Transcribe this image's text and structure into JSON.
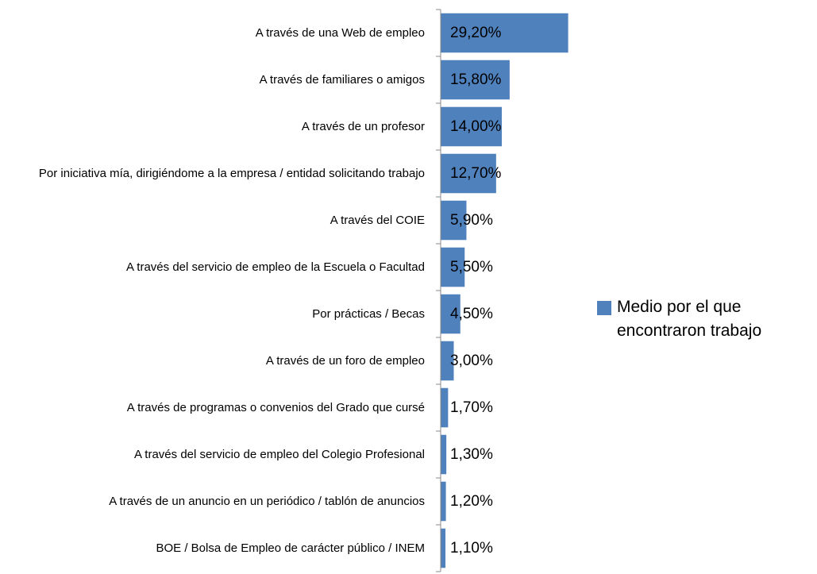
{
  "chart_data": {
    "type": "bar",
    "orientation": "horizontal",
    "categories": [
      "A través de una Web de empleo",
      "A través de familiares o amigos",
      "A través de un profesor",
      "Por iniciativa mía, dirigiéndome a la empresa / entidad solicitando trabajo",
      "A través del COIE",
      "A través del servicio de empleo de la Escuela o Facultad",
      "Por prácticas / Becas",
      "A través de un foro de empleo",
      "A través de programas o convenios del Grado que cursé",
      "A través del servicio de empleo del Colegio Profesional",
      "A través de un anuncio en un periódico / tablón de anuncios",
      "BOE / Bolsa de Empleo de carácter público / INEM"
    ],
    "series": [
      {
        "name": "Medio por el que encontraron trabajo",
        "color": "#4f81bd",
        "values": [
          29.2,
          15.8,
          14.0,
          12.7,
          5.9,
          5.5,
          4.5,
          3.0,
          1.7,
          1.3,
          1.2,
          1.1
        ],
        "value_labels": [
          "29,20%",
          "15,80%",
          "14,00%",
          "12,70%",
          "5,90%",
          "5,50%",
          "4,50%",
          "3,00%",
          "1,70%",
          "1,30%",
          "1,20%",
          "1,10%"
        ]
      }
    ],
    "xlim": [
      0,
      30
    ],
    "legend": "right"
  }
}
